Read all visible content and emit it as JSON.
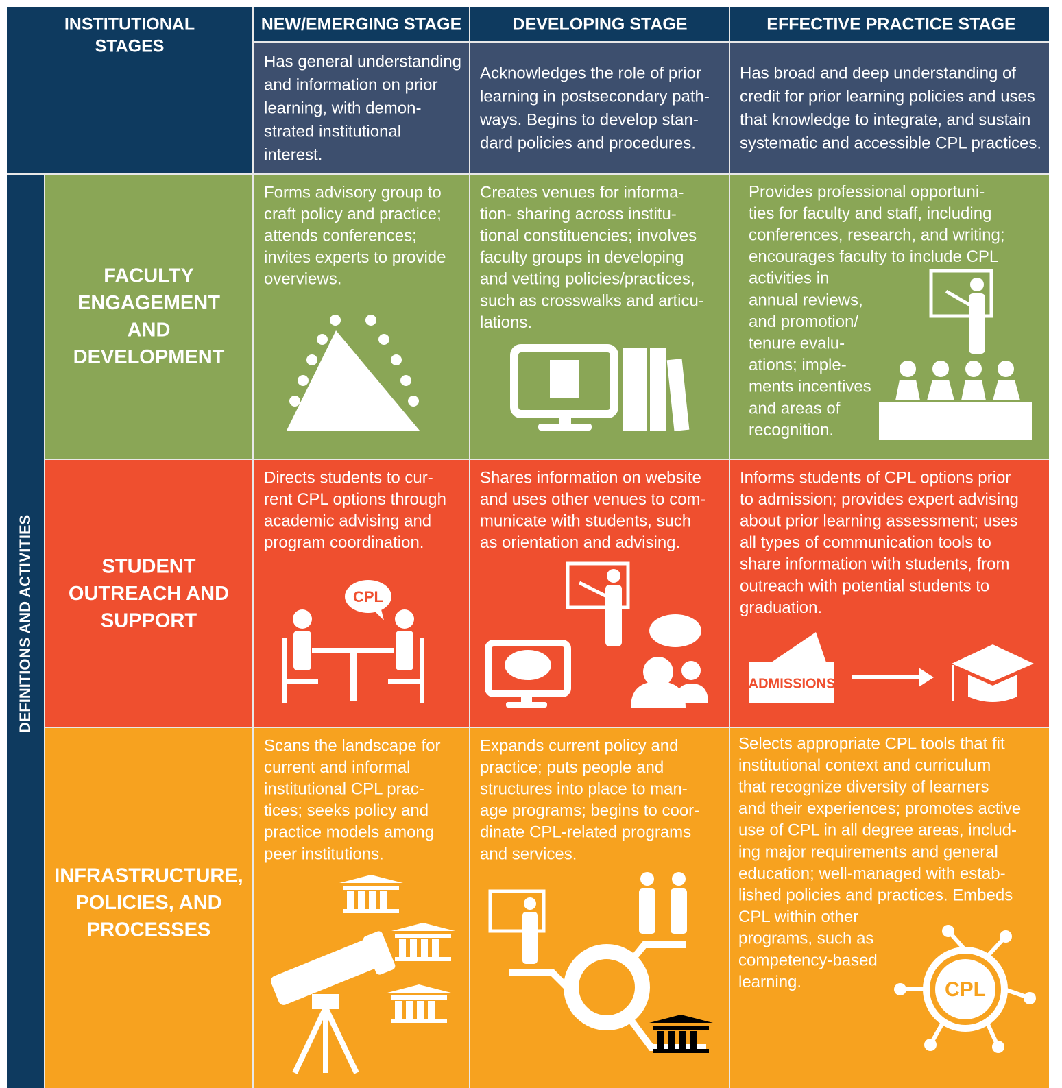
{
  "header": {
    "corner": [
      "INSTITUTIONAL",
      "STAGES"
    ],
    "stages": [
      "NEW/EMERGING STAGE",
      "DEVELOPING STAGE",
      "EFFECTIVE PRACTICE STAGE"
    ],
    "descriptions": [
      [
        "Has general understanding",
        "and information on prior",
        "learning, with demon-",
        "strated institutional",
        "interest."
      ],
      [
        "Acknowledges the role of prior",
        "learning in postsecondary path-",
        "ways. Begins to develop stan-",
        "dard policies and procedures."
      ],
      [
        "Has broad and deep understanding of",
        "credit for prior learning policies and uses",
        "that knowledge to integrate, and sustain",
        "systematic and accessible CPL practices."
      ]
    ]
  },
  "side_label": "DEFINITIONS AND ACTIVITIES",
  "sections": [
    {
      "title": [
        "FACULTY",
        "ENGAGEMENT",
        "AND",
        "DEVELOPMENT"
      ],
      "cells": [
        [
          "Forms advisory group to",
          "craft policy and practice;",
          "attends conferences;",
          "invites experts to provide",
          "overviews."
        ],
        [
          "Creates venues for informa-",
          "tion- sharing across institu-",
          "tional constituencies; involves",
          "faculty groups in developing",
          "and vetting policies/practices,",
          "such as crosswalks and articu-",
          "lations."
        ],
        [
          "Provides professional opportuni-",
          "ties for faculty and staff, including",
          "conferences, research, and writing;",
          "encourages faculty to include CPL",
          "activities in",
          "annual reviews,",
          "and promotion/",
          "tenure evalu-",
          "ations; imple-",
          "ments incentives",
          "and areas of",
          "recognition."
        ]
      ]
    },
    {
      "title": [
        "STUDENT",
        "OUTREACH AND",
        "SUPPORT"
      ],
      "cells": [
        [
          "Directs students to cur-",
          "rent CPL options through",
          "academic advising and",
          "program coordination."
        ],
        [
          "Shares information on website",
          "and uses other venues to com-",
          "municate with students, such",
          "as orientation and advising."
        ],
        [
          "Informs students of CPL options prior",
          "to admission; provides expert advising",
          "about prior learning assessment; uses",
          "all types of communication tools to",
          "share information with students, from",
          "outreach with potential students to",
          "graduation."
        ]
      ]
    },
    {
      "title": [
        "INFRASTRUCTURE,",
        "POLICIES, AND",
        "PROCESSES"
      ],
      "cells": [
        [
          "Scans the landscape for",
          "current and informal",
          "institutional CPL prac-",
          "tices; seeks policy and",
          "practice models among",
          "peer institutions."
        ],
        [
          "Expands current policy and",
          "practice; puts people and",
          "structures into place to man-",
          "age programs; begins to coor-",
          "dinate CPL-related programs",
          "and services."
        ],
        [
          "Selects appropriate CPL tools that fit",
          "institutional context and curriculum",
          "that recognize diversity of learners",
          "and their experiences; promotes active",
          "use of CPL in all degree areas, includ-",
          "ing major requirements and general",
          "education; well-managed with estab-",
          "lished policies and practices. Embeds",
          "CPL within other",
          "programs, such as",
          "competency-based",
          "learning."
        ]
      ]
    }
  ],
  "icon_labels": {
    "student_bubble": "CPL",
    "admissions": "ADMISSIONS",
    "infrastructure_hub": "CPL"
  }
}
